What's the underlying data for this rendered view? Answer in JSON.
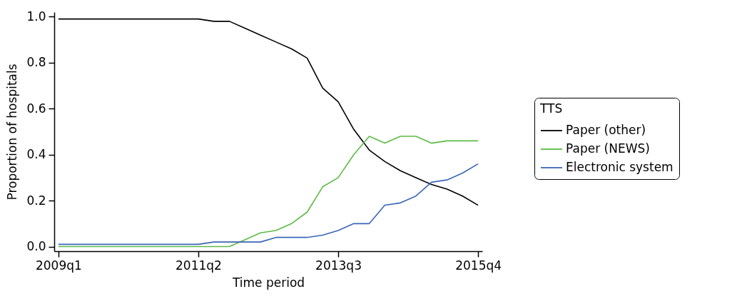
{
  "chart_data": {
    "type": "line",
    "xlabel": "Time period",
    "ylabel": "Proportion of hospitals",
    "legend_title": "TTS",
    "legend": "right",
    "grid": false,
    "marker": "none",
    "line_style": "solid",
    "categories": [
      "2009q1",
      null,
      null,
      null,
      null,
      null,
      null,
      null,
      null,
      "2011q2",
      null,
      null,
      null,
      null,
      null,
      null,
      null,
      null,
      "2013q3",
      null,
      null,
      null,
      null,
      null,
      null,
      null,
      null,
      "2015q4"
    ],
    "ylim": [
      -0.02,
      1.02
    ],
    "yticks": [
      {
        "value": 0,
        "label": "0.0"
      },
      {
        "value": 0.2,
        "label": "0.2"
      },
      {
        "value": 0.4,
        "label": "0.4"
      },
      {
        "value": 0.6,
        "label": "0.6"
      },
      {
        "value": 0.8,
        "label": "0.8"
      },
      {
        "value": 1,
        "label": "1.0"
      }
    ],
    "series": [
      {
        "name": "Paper (other)",
        "color": "#000000",
        "values": [
          0.99,
          0.99,
          0.99,
          0.99,
          0.99,
          0.99,
          0.99,
          0.99,
          0.99,
          0.99,
          0.98,
          0.98,
          0.95,
          0.92,
          0.89,
          0.86,
          0.82,
          0.69,
          0.63,
          0.51,
          0.42,
          0.37,
          0.33,
          0.3,
          0.27,
          0.25,
          0.22,
          0.18
        ]
      },
      {
        "name": "Paper (NEWS)",
        "color": "#5dba47",
        "values": [
          0,
          0,
          0,
          0,
          0,
          0,
          0,
          0,
          0,
          0,
          0,
          0,
          0.03,
          0.06,
          0.07,
          0.1,
          0.15,
          0.26,
          0.3,
          0.4,
          0.48,
          0.45,
          0.48,
          0.48,
          0.45,
          0.46,
          0.46,
          0.46
        ]
      },
      {
        "name": "Electronic system",
        "color": "#3a66b7",
        "values": [
          0.01,
          0.01,
          0.01,
          0.01,
          0.01,
          0.01,
          0.01,
          0.01,
          0.01,
          0.01,
          0.02,
          0.02,
          0.02,
          0.02,
          0.04,
          0.04,
          0.04,
          0.05,
          0.07,
          0.1,
          0.1,
          0.18,
          0.19,
          0.22,
          0.28,
          0.29,
          0.32,
          0.36
        ]
      }
    ]
  }
}
